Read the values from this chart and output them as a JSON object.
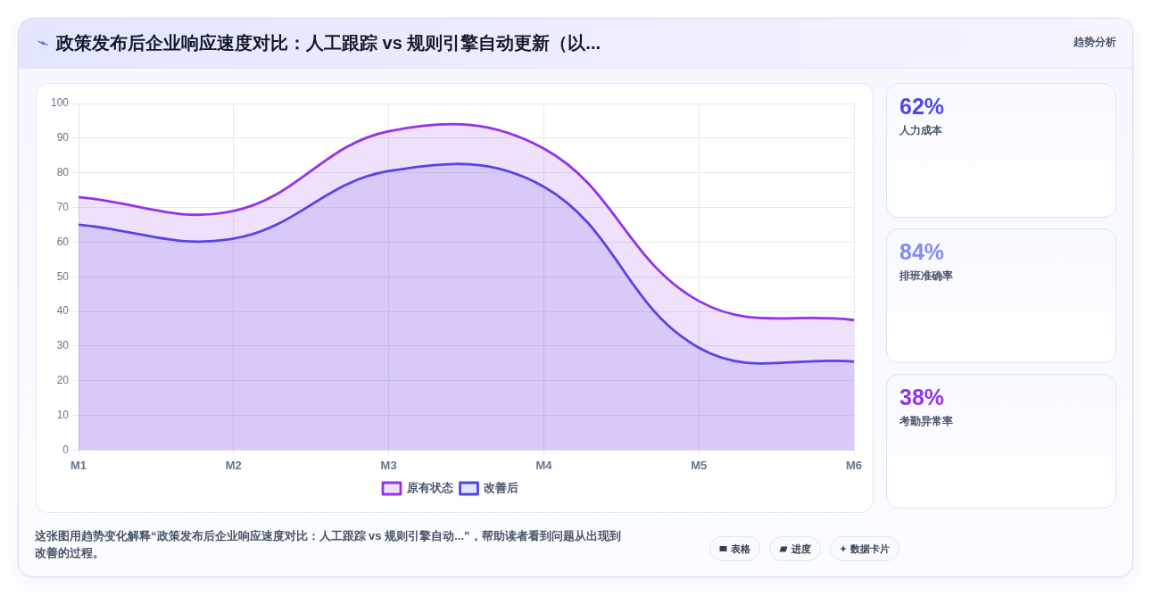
{
  "chart_data": [
    {
      "type": "area",
      "title": "政策发布后企业响应速度对比：人工跟踪 vs 规则引擎自动更新（以...",
      "categories": [
        "M1",
        "M2",
        "M3",
        "M4",
        "M5",
        "M6"
      ],
      "series": [
        {
          "name": "原有状态",
          "color": "#9333ea",
          "values": [
            73,
            69,
            92,
            87,
            43,
            37.5
          ]
        },
        {
          "name": "改善后",
          "color": "#4f46e5",
          "values": [
            65,
            61,
            80.5,
            76,
            29.5,
            25.5
          ]
        }
      ],
      "ylim": [
        0,
        100
      ],
      "yticks": [
        0,
        10,
        20,
        30,
        40,
        50,
        60,
        70,
        80,
        90,
        100
      ],
      "grid": true,
      "legend": "bottom",
      "annotations": [
        "这张图用趋势变化解释“政策发布后企业响应速度对比：人工跟踪 vs 规则引擎自动...”，帮助读者看到问题从出现到改善的过程。",
        "表格",
        "进度",
        "数据卡片"
      ]
    },
    {
      "type": "other",
      "title": "趋势分析",
      "categories": [
        "人力成本",
        "排班准确率",
        "考勤异常率"
      ],
      "value_labels": [
        "62%",
        "84%",
        "38%"
      ]
    }
  ]
}
